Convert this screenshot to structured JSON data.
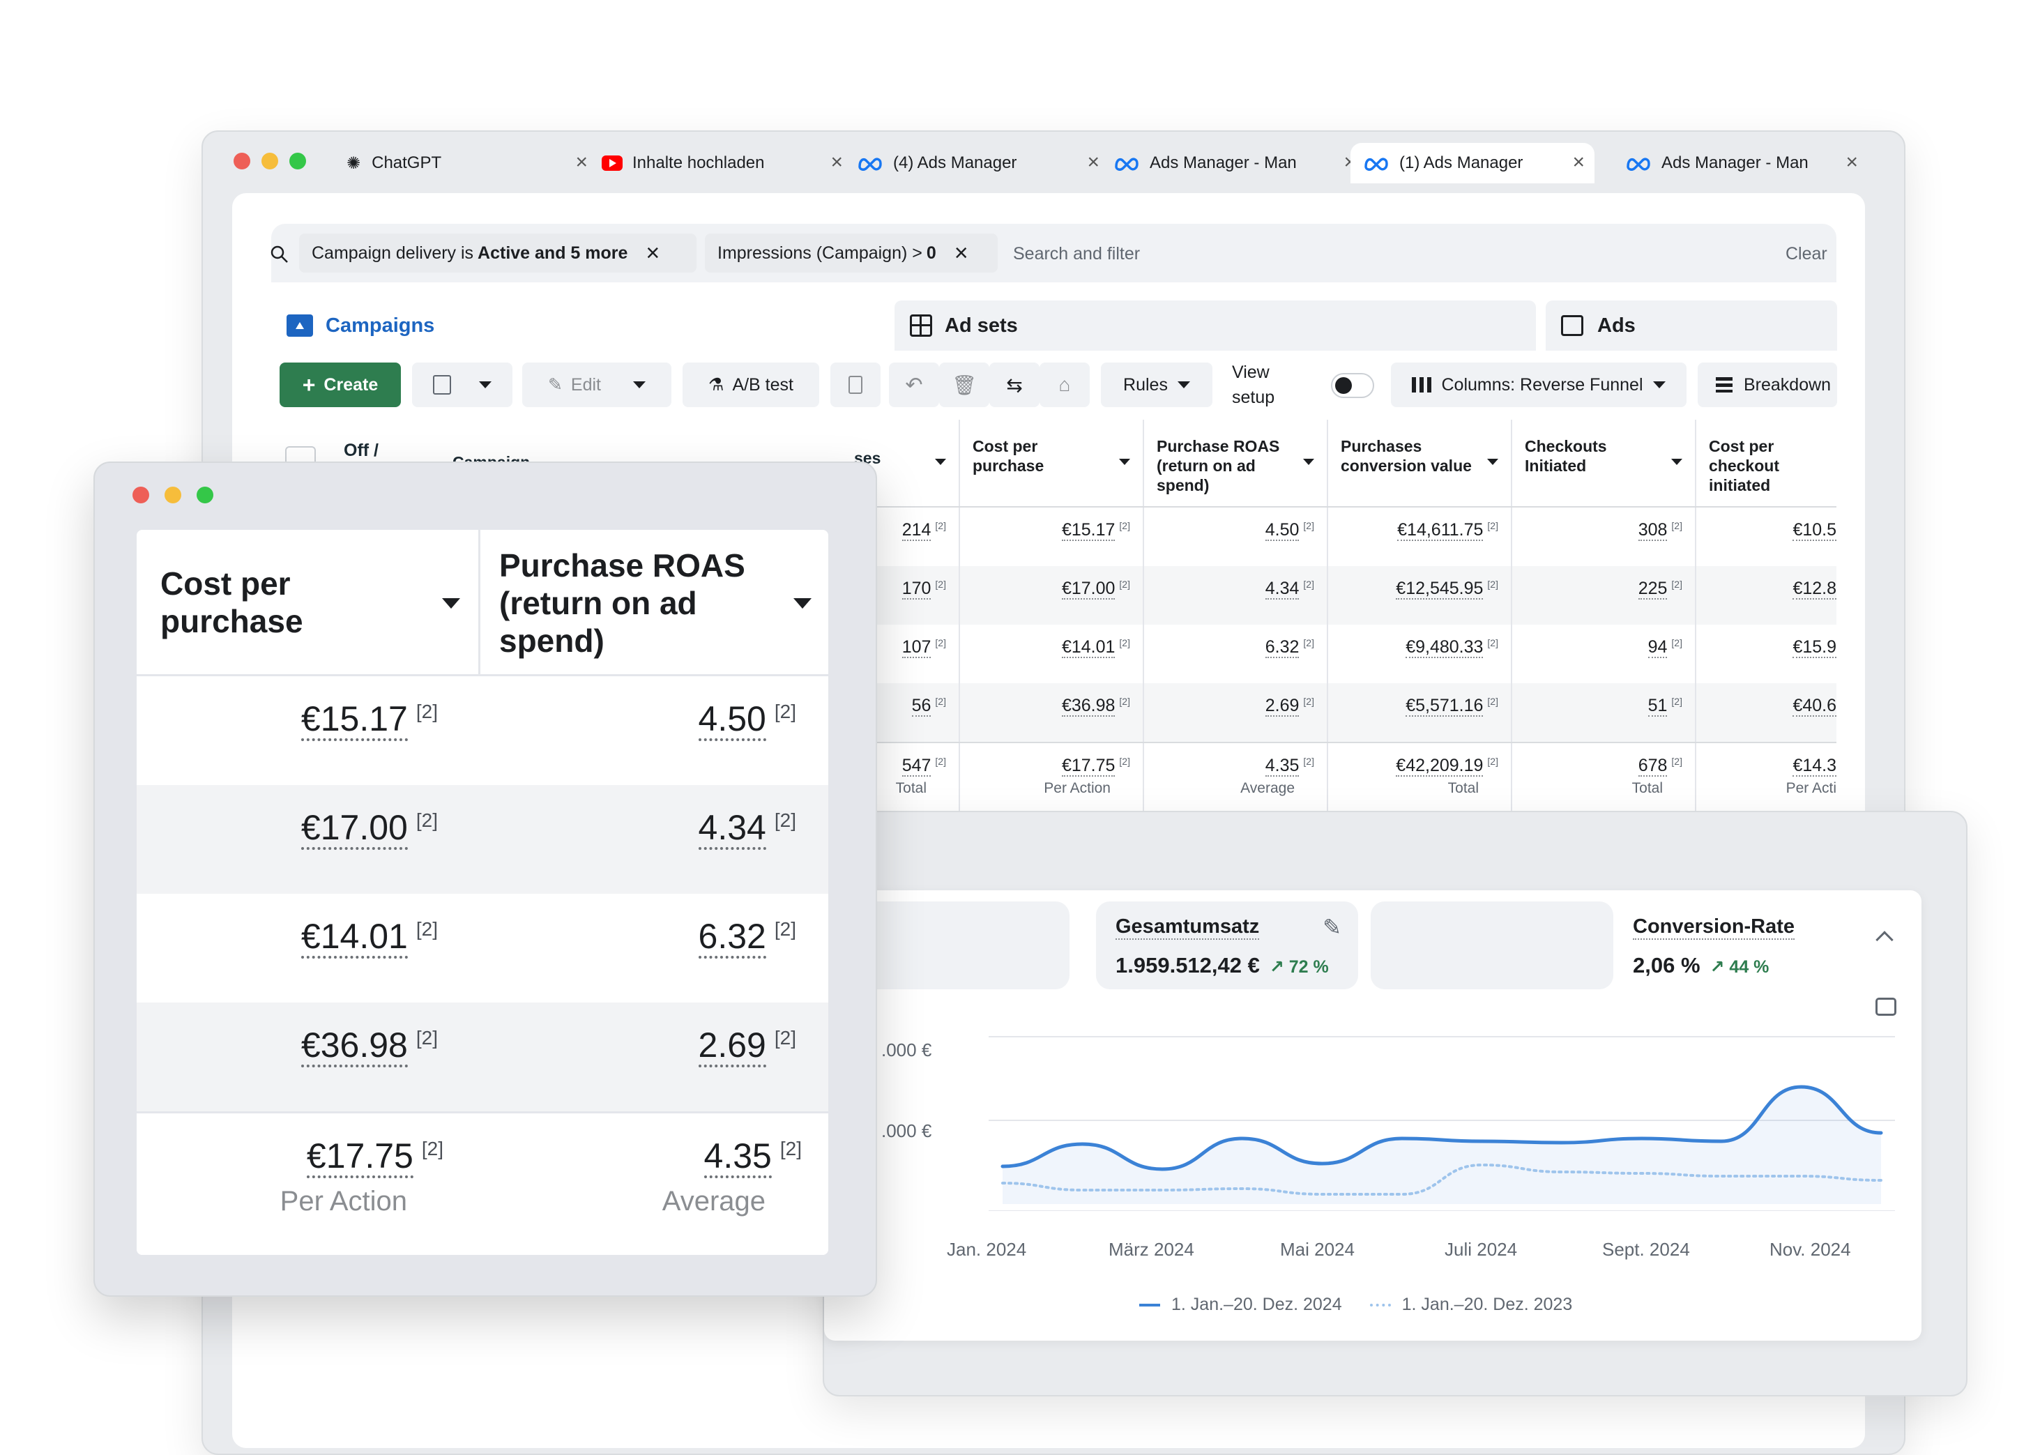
{
  "browser": {
    "tabs": [
      {
        "label": "ChatGPT",
        "icon": "chatgpt-icon"
      },
      {
        "label": "Inhalte hochladen",
        "icon": "youtube-icon"
      },
      {
        "label": "(4) Ads Manager",
        "icon": "meta-icon"
      },
      {
        "label": "Ads Manager - Man",
        "icon": "meta-icon"
      },
      {
        "label": "(1) Ads Manager",
        "icon": "meta-icon"
      },
      {
        "label": "Ads Manager - Man",
        "icon": "meta-icon"
      }
    ],
    "active_tab": 4
  },
  "filters": {
    "chip1_prefix": "Campaign delivery is",
    "chip1_bold": "Active and 5 more",
    "chip2_prefix": "Impressions (Campaign) >",
    "chip2_bold": "0",
    "search_placeholder": "Search and filter",
    "clear": "Clear"
  },
  "levels": {
    "campaigns": "Campaigns",
    "adsets": "Ad sets",
    "ads": "Ads"
  },
  "toolbar": {
    "create": "Create",
    "edit": "Edit",
    "ab_test": "A/B test",
    "rules": "Rules",
    "view_setup_1": "View",
    "view_setup_2": "setup",
    "columns": "Columns: Reverse Funnel",
    "breakdown": "Breakdown"
  },
  "table": {
    "partial_headers": {
      "off": "Off /",
      "campaign": "Campaign",
      "purchases_tail": "ses"
    },
    "headers": {
      "cost_per_purchase": "Cost per purchase",
      "roas": "Purchase ROAS (return on ad spend)",
      "conv_value": "Purchases conversion value",
      "checkouts": "Checkouts Initiated",
      "cost_per_checkout": "Cost per checkout initiated"
    },
    "rows": [
      {
        "purchases": "214",
        "cpp": "€15.17",
        "roas": "4.50",
        "value": "€14,611.75",
        "checkouts": "308",
        "cpc": "€10.5"
      },
      {
        "purchases": "170",
        "cpp": "€17.00",
        "roas": "4.34",
        "value": "€12,545.95",
        "checkouts": "225",
        "cpc": "€12.8"
      },
      {
        "purchases": "107",
        "cpp": "€14.01",
        "roas": "6.32",
        "value": "€9,480.33",
        "checkouts": "94",
        "cpc": "€15.9"
      },
      {
        "purchases": "56",
        "cpp": "€36.98",
        "roas": "2.69",
        "value": "€5,571.16",
        "checkouts": "51",
        "cpc": "€40.6"
      }
    ],
    "totals": {
      "purchases": "547",
      "purchases_sub": "Total",
      "cpp": "€17.75",
      "cpp_sub": "Per Action",
      "roas": "4.35",
      "roas_sub": "Average",
      "value": "€42,209.19",
      "value_sub": "Total",
      "checkouts": "678",
      "checkouts_sub": "Total",
      "cpc": "€14.3",
      "cpc_sub": "Per Acti"
    },
    "footnote": "[2]"
  },
  "zoom": {
    "col1": "Cost per purchase",
    "col2": "Purchase ROAS (return on ad spend)",
    "rows": [
      {
        "cpp": "€15.17",
        "roas": "4.50"
      },
      {
        "cpp": "€17.00",
        "roas": "4.34"
      },
      {
        "cpp": "€14.01",
        "roas": "6.32"
      },
      {
        "cpp": "€36.98",
        "roas": "2.69"
      }
    ],
    "total": {
      "cpp": "€17.75",
      "cpp_sub": "Per Action",
      "roas": "4.35",
      "roas_sub": "Average"
    },
    "footnote": "[2]"
  },
  "analytics": {
    "kpi_revenue_label": "Gesamtumsatz",
    "kpi_revenue_value": "1.959.512,42 €",
    "kpi_revenue_delta": "↗ 72 %",
    "kpi_conv_label": "Conversion-Rate",
    "kpi_conv_value": "2,06 %",
    "kpi_conv_delta": "↗ 44 %",
    "y_ticks": [
      ".000 €",
      ".000 €"
    ],
    "x_ticks": [
      "Jan. 2024",
      "März 2024",
      "Mai 2024",
      "Juli 2024",
      "Sept. 2024",
      "Nov. 2024"
    ],
    "legend_current": "1. Jan.–20. Dez. 2024",
    "legend_previous": "1. Jan.–20. Dez. 2023",
    "colors": {
      "current": "#3b82d6",
      "previous": "#9ec4ec"
    }
  },
  "chart_data": {
    "type": "line",
    "x": [
      "Jan. 2024",
      "Feb. 2024",
      "März 2024",
      "Apr. 2024",
      "Mai 2024",
      "Juni 2024",
      "Juli 2024",
      "Aug. 2024",
      "Sept. 2024",
      "Okt. 2024",
      "Nov. 2024",
      "Dez. 2024"
    ],
    "series": [
      {
        "name": "1. Jan.–20. Dez. 2024",
        "values": [
          0.22,
          0.38,
          0.2,
          0.42,
          0.24,
          0.42,
          0.4,
          0.39,
          0.42,
          0.4,
          0.79,
          0.46
        ]
      },
      {
        "name": "1. Jan.–20. Dez. 2023",
        "values": [
          0.1,
          0.05,
          0.05,
          0.06,
          0.02,
          0.02,
          0.23,
          0.18,
          0.17,
          0.15,
          0.15,
          0.12
        ]
      }
    ],
    "xlabel": "",
    "ylabel": ""
  }
}
